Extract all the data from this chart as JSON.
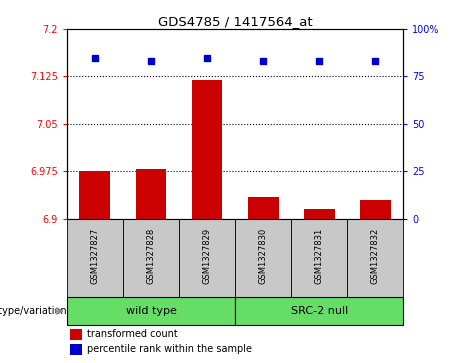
{
  "title": "GDS4785 / 1417564_at",
  "samples": [
    "GSM1327827",
    "GSM1327828",
    "GSM1327829",
    "GSM1327830",
    "GSM1327831",
    "GSM1327832"
  ],
  "bar_values": [
    6.975,
    6.978,
    7.12,
    6.935,
    6.915,
    6.93
  ],
  "bar_base": 6.9,
  "percentile_values": [
    85,
    83,
    85,
    83,
    83,
    83
  ],
  "ylim_left": [
    6.9,
    7.2
  ],
  "ylim_right": [
    0,
    100
  ],
  "yticks_left": [
    6.9,
    6.975,
    7.05,
    7.125,
    7.2
  ],
  "ytick_labels_left": [
    "6.9",
    "6.975",
    "7.05",
    "7.125",
    "7.2"
  ],
  "yticks_right": [
    0,
    25,
    50,
    75,
    100
  ],
  "ytick_labels_right": [
    "0",
    "25",
    "50",
    "75",
    "100%"
  ],
  "hlines": [
    6.975,
    7.05,
    7.125
  ],
  "bar_color": "#cc0000",
  "dot_color": "#0000cc",
  "group1_label": "wild type",
  "group2_label": "SRC-2 null",
  "group1_indices": [
    0,
    1,
    2
  ],
  "group2_indices": [
    3,
    4,
    5
  ],
  "group_color": "#66dd66",
  "genotype_label": "genotype/variation",
  "legend_bar_label": "transformed count",
  "legend_dot_label": "percentile rank within the sample",
  "sample_bg_color": "#c8c8c8",
  "plot_bg": "#ffffff",
  "bar_width": 0.55
}
